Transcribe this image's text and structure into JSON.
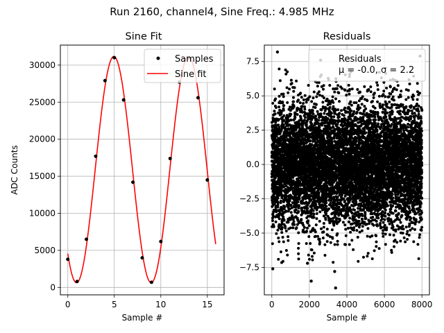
{
  "figure": {
    "suptitle": "Run 2160, channel4, Sine Freq.: 4.985 MHz"
  },
  "chart_data": [
    {
      "type": "line",
      "title": "Sine Fit",
      "xlabel": "Sample #",
      "ylabel": "ADC Counts",
      "xlim": [
        -0.8,
        16.8
      ],
      "ylim": [
        -1000,
        32700
      ],
      "xticks": [
        0,
        5,
        10,
        15
      ],
      "yticks": [
        0,
        5000,
        10000,
        15000,
        20000,
        25000,
        30000
      ],
      "grid": true,
      "legend": {
        "placement": "top-right",
        "entries": [
          "Samples",
          "Sine fit"
        ]
      },
      "series": [
        {
          "name": "Samples",
          "style": "scatter",
          "color": "#000000",
          "x": [
            0,
            1,
            2,
            3,
            4,
            5,
            6,
            7,
            8,
            9,
            10,
            11,
            12,
            13,
            14,
            15
          ],
          "y": [
            3800,
            800,
            6500,
            17700,
            27900,
            31000,
            25300,
            14200,
            4000,
            700,
            6200,
            17400,
            27700,
            31000,
            25600,
            14500
          ]
        },
        {
          "name": "Sine fit",
          "style": "line",
          "color": "#ff0000",
          "function": {
            "offset": 15900,
            "amplitude": 15270,
            "period": 8.025,
            "phase_x": 4.95,
            "x_start": 0,
            "x_end": 15.9
          }
        }
      ]
    },
    {
      "type": "scatter",
      "title": "Residuals",
      "xlabel": "Sample #",
      "ylabel": "",
      "xlim": [
        -400,
        8400
      ],
      "ylim": [
        -9.5,
        8.7
      ],
      "xticks": [
        0,
        2000,
        4000,
        6000,
        8000
      ],
      "yticks": [
        -7.5,
        -5.0,
        -2.5,
        0.0,
        2.5,
        5.0,
        7.5
      ],
      "ytick_labels": [
        "−7.5",
        "−5.0",
        "−2.5",
        "0.0",
        "2.5",
        "5.0",
        "7.5"
      ],
      "grid": true,
      "legend": {
        "placement": "top-right",
        "entries": [
          "Residuals",
          "μ = -0.0, σ = 2.2"
        ]
      },
      "stats": {
        "mu": -0.0,
        "sigma": 2.2
      },
      "points_count": 8000,
      "series": [
        {
          "name": "Residuals",
          "color": "#000000",
          "x_range": [
            0,
            7999
          ],
          "outliers": [
            {
              "x": 300,
              "y": 8.2
            },
            {
              "x": 2600,
              "y": 7.6
            },
            {
              "x": 7900,
              "y": 7.9
            },
            {
              "x": 2100,
              "y": -8.5
            },
            {
              "x": 3400,
              "y": -9.0
            },
            {
              "x": 3350,
              "y": -7.8
            },
            {
              "x": 50,
              "y": -7.6
            },
            {
              "x": 1900,
              "y": -7.2
            }
          ]
        }
      ]
    }
  ]
}
